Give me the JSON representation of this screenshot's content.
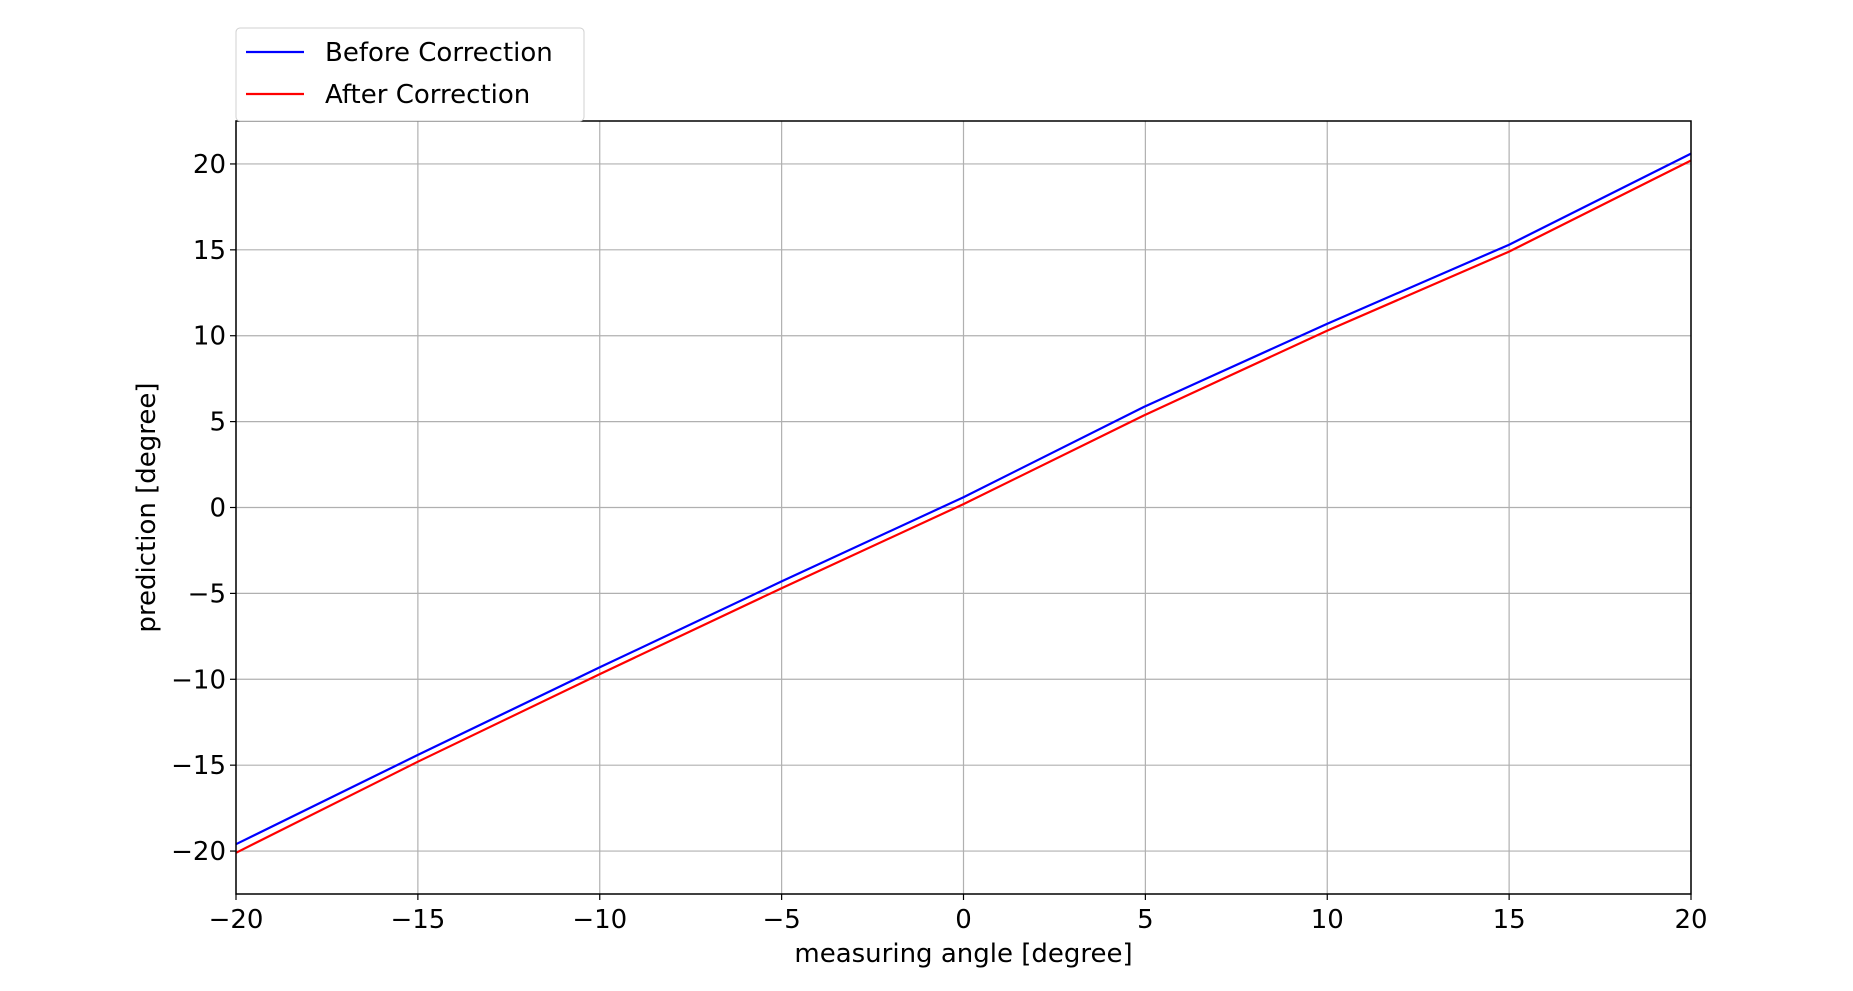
{
  "chart_data": {
    "type": "line",
    "title": "",
    "xlabel": "measuring angle [degree]",
    "ylabel": "prediction [degree]",
    "xlim": [
      -20,
      20
    ],
    "ylim": [
      -22.5,
      22.5
    ],
    "xticks": [
      -20,
      -15,
      -10,
      -5,
      0,
      5,
      10,
      15,
      20
    ],
    "yticks": [
      -20,
      -15,
      -10,
      -5,
      0,
      5,
      10,
      15,
      20
    ],
    "xtick_labels": [
      "−20",
      "−15",
      "−10",
      "−5",
      "0",
      "5",
      "10",
      "15",
      "20"
    ],
    "ytick_labels": [
      "−20",
      "−15",
      "−10",
      "−5",
      "0",
      "5",
      "10",
      "15",
      "20"
    ],
    "grid": true,
    "legend_position": "top-left",
    "x": [
      -20,
      -15,
      -10,
      -5,
      0,
      5,
      10,
      15,
      20
    ],
    "series": [
      {
        "name": "Before Correction",
        "color": "#0000ff",
        "values": [
          -19.6,
          -14.4,
          -9.3,
          -4.3,
          0.6,
          5.9,
          10.7,
          15.3,
          20.6
        ]
      },
      {
        "name": "After Correction",
        "color": "#ff0000",
        "values": [
          -20.1,
          -14.8,
          -9.7,
          -4.7,
          0.2,
          5.4,
          10.3,
          14.9,
          20.2
        ]
      }
    ]
  }
}
